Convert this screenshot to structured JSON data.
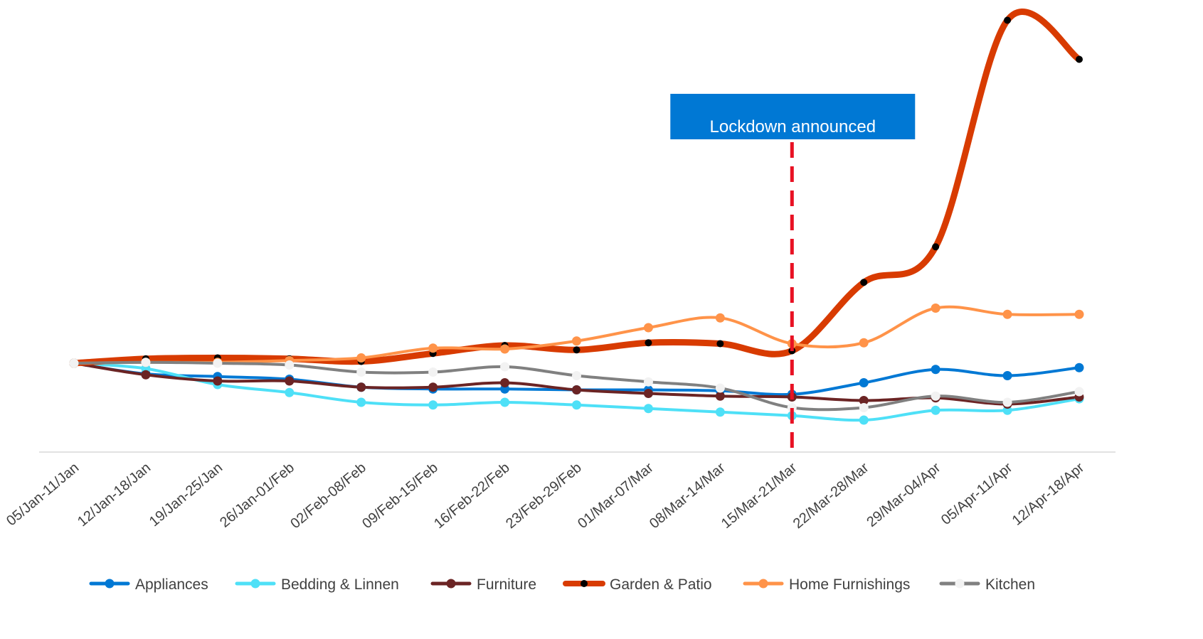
{
  "chart_data": {
    "type": "line",
    "categories": [
      "05/Jan-11/Jan",
      "12/Jan-18/Jan",
      "19/Jan-25/Jan",
      "26/Jan-01/Feb",
      "02/Feb-08/Feb",
      "09/Feb-15/Feb",
      "16/Feb-22/Feb",
      "23/Feb-29/Feb",
      "01/Mar-07/Mar",
      "08/Mar-14/Mar",
      "15/Mar-21/Mar",
      "22/Mar-28/Mar",
      "29/Mar-04/Apr",
      "05/Apr-11/Apr",
      "12/Apr-18/Apr"
    ],
    "series": [
      {
        "name": "Appliances",
        "color": "#0078d4",
        "marker_color": "#0078d4",
        "values": [
          100,
          88,
          85,
          82,
          73,
          71,
          71,
          70,
          70,
          69,
          65,
          78,
          93,
          86,
          95
        ]
      },
      {
        "name": "Bedding & Linnen",
        "color": "#4ee0f7",
        "marker_color": "#4ee0f7",
        "values": [
          100,
          94,
          76,
          67,
          56,
          53,
          56,
          53,
          49,
          45,
          41,
          36,
          47,
          47,
          60
        ]
      },
      {
        "name": "Furniture",
        "color": "#6b2424",
        "marker_color": "#6b2424",
        "values": [
          100,
          87,
          80,
          80,
          73,
          73,
          78,
          70,
          66,
          63,
          62,
          58,
          61,
          54,
          62
        ]
      },
      {
        "name": "Garden & Patio",
        "color": "#d83b01",
        "marker_color": "#000000",
        "values": [
          100,
          105,
          106,
          105,
          102,
          111,
          120,
          115,
          123,
          122,
          114,
          191,
          231,
          486,
          442
        ]
      },
      {
        "name": "Home Furnishings",
        "color": "#ff9349",
        "marker_color": "#ff9349",
        "values": [
          100,
          101,
          101,
          103,
          106,
          117,
          116,
          125,
          140,
          151,
          122,
          123,
          162,
          155,
          155
        ]
      },
      {
        "name": "Kitchen",
        "color": "#808080",
        "marker_color": "#f2f2f2",
        "values": [
          100,
          101,
          100,
          98,
          90,
          90,
          96,
          86,
          79,
          72,
          50,
          50,
          63,
          56,
          68
        ]
      }
    ],
    "ylim": [
      0,
      500
    ],
    "annotation": {
      "text": "Lockdown announced",
      "x": "15/Mar-21/Mar",
      "color": "#0078d4",
      "line_color": "#e81123"
    }
  }
}
